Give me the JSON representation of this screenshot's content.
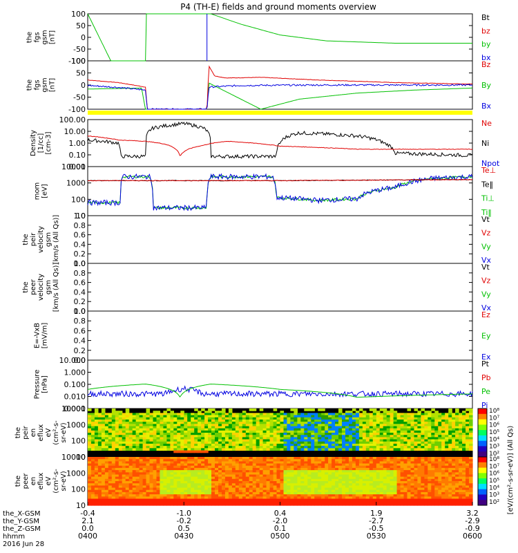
{
  "chart_data": {
    "type": "line",
    "title": "P4 (TH-E) fields and ground moments overview",
    "x_axis": {
      "ticks": [
        "0400",
        "0430",
        "0500",
        "0530",
        "0600"
      ],
      "rows": [
        {
          "label": "the_X-GSM",
          "values": [
            "-0.4",
            "-1.0",
            "0.4",
            "1.9",
            "3.2"
          ]
        },
        {
          "label": "the_Y-GSM",
          "values": [
            "2.1",
            "-0.2",
            "-2.0",
            "-2.7",
            "-2.9"
          ]
        },
        {
          "label": "the_Z-GSM",
          "values": [
            "0.0",
            "0.5",
            "0.1",
            "-0.5",
            "-0.9"
          ]
        },
        {
          "label": "hhmm",
          "values": [
            "0400",
            "0430",
            "0500",
            "0530",
            "0600"
          ]
        }
      ],
      "date": "2016 Jun 28"
    },
    "panels": [
      {
        "ylabel": [
          "the",
          "fgs",
          "gsm",
          "[nT]"
        ],
        "ticks": [
          "100",
          "50",
          "0",
          "-50",
          "-100"
        ],
        "ylim": [
          -100,
          100
        ],
        "legend": [
          {
            "name": "Bt",
            "color": "#000000"
          },
          {
            "name": "bz",
            "color": "#e00000"
          },
          {
            "name": "by",
            "color": "#00c000"
          },
          {
            "name": "bx",
            "color": "#0000e0"
          }
        ]
      },
      {
        "ylabel": [
          "the",
          "fgs",
          "gsm",
          "[nT]"
        ],
        "ticks": [
          "100",
          "50",
          "0",
          "-50",
          "-100"
        ],
        "ylim": [
          -120,
          120
        ],
        "legend": [
          {
            "name": "Bz",
            "color": "#e00000"
          },
          {
            "name": "By",
            "color": "#00c000"
          },
          {
            "name": "Bx",
            "color": "#0000e0"
          }
        ]
      },
      {
        "ylabel": [
          "Density",
          "[1/cc]",
          "[cm-3]"
        ],
        "ticks": [
          "100.00",
          "10.00",
          "1.00",
          "0.10",
          "0.01"
        ],
        "ylim": [
          0.005,
          200
        ],
        "legend": [
          {
            "name": "Ne",
            "color": "#e00000"
          },
          {
            "name": "Ni",
            "color": "#000000"
          },
          {
            "name": "Npot",
            "color": "#0000e0"
          }
        ]
      },
      {
        "ylabel": [
          "mom",
          "[eV]"
        ],
        "ticks": [
          "10000",
          "1000",
          "100",
          "10"
        ],
        "ylim": [
          2,
          12000
        ],
        "legend": [
          {
            "name": "Te⊥",
            "color": "#e00000"
          },
          {
            "name": "Te‖",
            "color": "#000000"
          },
          {
            "name": "Ti⊥",
            "color": "#00c000"
          },
          {
            "name": "Ti‖",
            "color": "#00c000"
          }
        ]
      },
      {
        "ylabel": [
          "the",
          "peir",
          "velocity",
          "gsm",
          "[km/s (All Qs)]"
        ],
        "ticks": [
          "1.0",
          "0.8",
          "0.6",
          "0.4",
          "0.2",
          "0.0"
        ],
        "ylim": [
          0,
          1
        ],
        "legend": [
          {
            "name": "Vt",
            "color": "#000000"
          },
          {
            "name": "Vz",
            "color": "#e00000"
          },
          {
            "name": "Vy",
            "color": "#00c000"
          },
          {
            "name": "Vx",
            "color": "#0000e0"
          }
        ]
      },
      {
        "ylabel": [
          "the",
          "peer",
          "velocity",
          "gsm",
          "[km/s (All Qs)]"
        ],
        "ticks": [
          "1.0",
          "0.8",
          "0.6",
          "0.4",
          "0.2",
          "0.0"
        ],
        "ylim": [
          0,
          1
        ],
        "legend": [
          {
            "name": "Vt",
            "color": "#000000"
          },
          {
            "name": "Vz",
            "color": "#e00000"
          },
          {
            "name": "Vy",
            "color": "#00c000"
          },
          {
            "name": "Vx",
            "color": "#0000e0"
          }
        ]
      },
      {
        "ylabel": [
          "E=-VxB",
          "[mV/m]"
        ],
        "ticks": [
          "1.0",
          "0.8",
          "0.6",
          "0.4",
          "0.2",
          "0.0"
        ],
        "ylim": [
          0,
          1
        ],
        "legend": [
          {
            "name": "Ez",
            "color": "#e00000"
          },
          {
            "name": "Ey",
            "color": "#00c000"
          },
          {
            "name": "Ex",
            "color": "#0000e0"
          }
        ]
      },
      {
        "ylabel": [
          "Pressure",
          "[nPa]"
        ],
        "ticks": [
          "10.000",
          "1.000",
          "0.100",
          "0.010",
          "0.001"
        ],
        "ylim": [
          0.001,
          20
        ],
        "legend": [
          {
            "name": "Pt",
            "color": "#000000"
          },
          {
            "name": "Pb",
            "color": "#e00000"
          },
          {
            "name": "Pe",
            "color": "#00c000"
          },
          {
            "name": "Pi",
            "color": "#0000e0"
          }
        ]
      },
      {
        "ylabel": [
          "the",
          "peir",
          "en",
          "eflux",
          "eV",
          "(cm²-s-",
          "sr-eV)"
        ],
        "ticks": [
          "10000",
          "1000",
          "100",
          "10"
        ],
        "kind": "spectrogram"
      },
      {
        "ylabel": [
          "the",
          "peer",
          "en",
          "eflux",
          "eV",
          "(cm²-s-",
          "sr-eV)"
        ],
        "ticks": [
          "10000",
          "1000",
          "100",
          "10"
        ],
        "kind": "spectrogram"
      }
    ],
    "series_samples": {
      "fgs_by": [
        [
          0.0,
          100
        ],
        [
          0.06,
          -100
        ],
        [
          0.15,
          -100
        ],
        [
          0.151,
          100
        ],
        [
          0.32,
          100
        ],
        [
          0.4,
          55
        ],
        [
          0.5,
          10
        ],
        [
          0.62,
          -15
        ],
        [
          0.8,
          -25
        ],
        [
          1.0,
          -25
        ]
      ],
      "fgs_gsm_Bz": [
        [
          0.0,
          25
        ],
        [
          0.08,
          12
        ],
        [
          0.15,
          -10
        ],
        [
          0.155,
          -120
        ],
        [
          0.31,
          -120
        ],
        [
          0.315,
          95
        ],
        [
          0.33,
          45
        ],
        [
          0.36,
          35
        ],
        [
          0.45,
          38
        ],
        [
          0.6,
          25
        ],
        [
          0.8,
          12
        ],
        [
          1.0,
          5
        ]
      ],
      "fgs_gsm_By": [
        [
          0.0,
          -20
        ],
        [
          0.14,
          -15
        ],
        [
          0.15,
          -120
        ],
        [
          0.31,
          -120
        ],
        [
          0.315,
          10
        ],
        [
          0.45,
          -120
        ],
        [
          0.55,
          -70
        ],
        [
          0.7,
          -40
        ],
        [
          0.85,
          -25
        ],
        [
          1.0,
          -15
        ]
      ],
      "fgs_gsm_Bx": [
        [
          0.0,
          -2
        ],
        [
          0.08,
          -12
        ],
        [
          0.15,
          -25
        ],
        [
          0.155,
          -120
        ],
        [
          0.31,
          -120
        ],
        [
          0.315,
          -10
        ],
        [
          0.4,
          -2
        ],
        [
          0.6,
          0
        ],
        [
          1.0,
          0
        ]
      ],
      "Ne": [
        [
          0.0,
          5
        ],
        [
          0.08,
          2
        ],
        [
          0.15,
          1.5
        ],
        [
          0.2,
          0.8
        ],
        [
          0.24,
          0.05
        ],
        [
          0.3,
          0.6
        ],
        [
          0.36,
          1.5
        ],
        [
          0.5,
          0.5
        ],
        [
          0.7,
          0.25
        ],
        [
          1.0,
          0.25
        ]
      ],
      "Ni": [
        [
          0.0,
          2
        ],
        [
          0.08,
          1
        ],
        [
          0.085,
          0.05
        ],
        [
          0.15,
          0.05
        ],
        [
          0.17,
          30
        ],
        [
          0.25,
          80
        ],
        [
          0.3,
          30
        ],
        [
          0.32,
          0.05
        ],
        [
          0.49,
          0.05
        ],
        [
          0.5,
          1
        ],
        [
          0.55,
          10
        ],
        [
          0.7,
          5
        ],
        [
          0.77,
          1
        ],
        [
          0.8,
          0.1
        ],
        [
          1.0,
          0.06
        ]
      ],
      "Te_perp": [
        [
          0.0,
          1000
        ],
        [
          0.5,
          1000
        ],
        [
          1.0,
          1200
        ]
      ],
      "Ti": [
        [
          0.0,
          20
        ],
        [
          0.085,
          20
        ],
        [
          0.09,
          2000
        ],
        [
          0.16,
          2000
        ],
        [
          0.17,
          8
        ],
        [
          0.31,
          8
        ],
        [
          0.32,
          2000
        ],
        [
          0.48,
          2000
        ],
        [
          0.49,
          50
        ],
        [
          0.6,
          30
        ],
        [
          0.7,
          40
        ],
        [
          0.8,
          300
        ],
        [
          0.9,
          1500
        ],
        [
          1.0,
          2000
        ]
      ],
      "Pe": [
        [
          0.0,
          0.05
        ],
        [
          0.15,
          0.15
        ],
        [
          0.24,
          0.01
        ],
        [
          0.32,
          0.15
        ],
        [
          0.5,
          0.05
        ],
        [
          0.7,
          0.01
        ],
        [
          1.0,
          0.02
        ]
      ],
      "Pi": [
        [
          0.0,
          0.02
        ],
        [
          0.2,
          0.02
        ],
        [
          0.25,
          0.06
        ],
        [
          0.3,
          0.02
        ],
        [
          1.0,
          0.02
        ]
      ]
    },
    "colorbar": {
      "ticks": [
        "10⁸",
        "10⁷",
        "10⁶",
        "10⁵",
        "10⁴",
        "10³",
        "10²"
      ],
      "label": "[eV/(cm²-s-sr-eV)] (All Qs)"
    }
  }
}
